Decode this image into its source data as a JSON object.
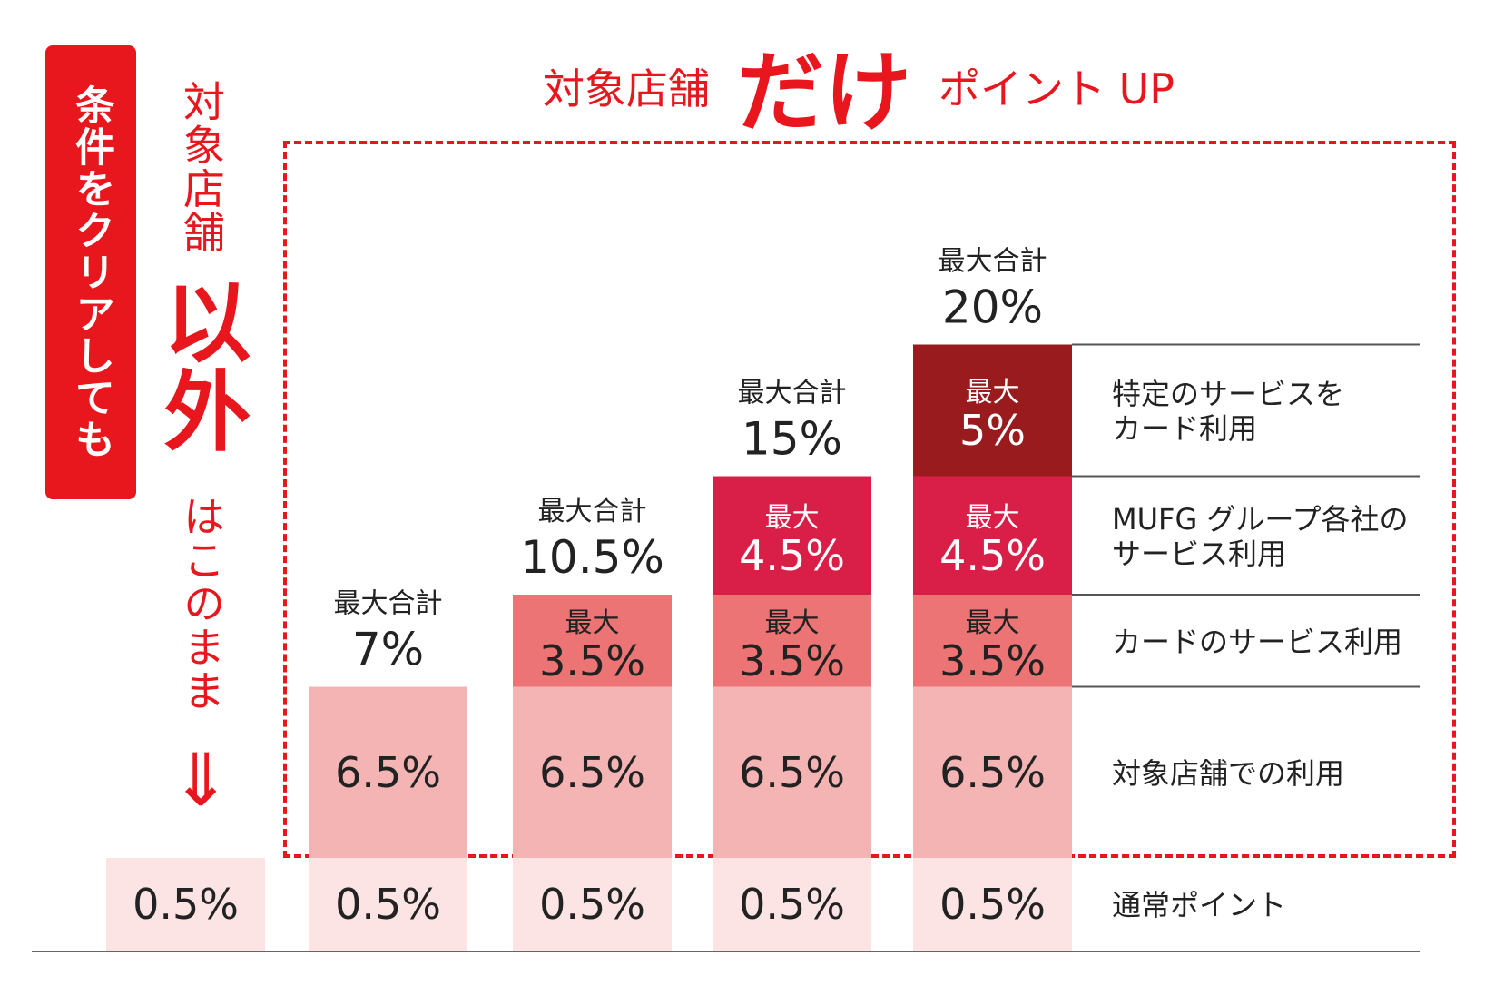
{
  "badge": {
    "text": "条件をクリアしても"
  },
  "side": {
    "line1": "対象店舗",
    "line2": "以外",
    "line3": "はこのまま",
    "arrow": "⇓"
  },
  "headline": {
    "prefix": "対象店舗",
    "emph": "だけ",
    "suffix": "ポイント UP"
  },
  "chart_data": {
    "type": "bar",
    "stacked": true,
    "categories": [
      "",
      "",
      "",
      "",
      ""
    ],
    "segment_prefix": "最大",
    "total_prefix": "最大合計",
    "series": [
      {
        "name": "通常ポイント",
        "values": [
          0.5,
          0.5,
          0.5,
          0.5,
          0.5
        ],
        "labels": [
          "0.5%",
          "0.5%",
          "0.5%",
          "0.5%",
          "0.5%"
        ],
        "color": "#fce4e4"
      },
      {
        "name": "対象店舗での利用",
        "values": [
          0,
          6.5,
          6.5,
          6.5,
          6.5
        ],
        "labels": [
          "",
          "6.5%",
          "6.5%",
          "6.5%",
          "6.5%"
        ],
        "color": "#f5b4b4"
      },
      {
        "name": "カードのサービス利用",
        "values": [
          0,
          0,
          3.5,
          3.5,
          3.5
        ],
        "labels": [
          "",
          "",
          "3.5%",
          "3.5%",
          "3.5%"
        ],
        "color": "#ec7474"
      },
      {
        "name": "MUFG グループ各社のサービス利用",
        "values": [
          0,
          0,
          0,
          4.5,
          4.5
        ],
        "labels": [
          "",
          "",
          "",
          "4.5%",
          "4.5%"
        ],
        "color": "#d91f48"
      },
      {
        "name": "特定のサービスをカード利用",
        "values": [
          0,
          0,
          0,
          0,
          5
        ],
        "labels": [
          "",
          "",
          "",
          "",
          "5%"
        ],
        "color": "#991b1e"
      }
    ],
    "totals": [
      "",
      "7%",
      "10.5%",
      "15%",
      "20%"
    ]
  },
  "legend": {
    "items": [
      {
        "lines": [
          "特定のサービスを",
          "カード利用"
        ]
      },
      {
        "lines": [
          "MUFG グループ各社の",
          "サービス利用"
        ]
      },
      {
        "lines": [
          "カードのサービス利用"
        ]
      },
      {
        "lines": [
          "対象店舗での利用"
        ]
      },
      {
        "lines": [
          "通常ポイント"
        ]
      }
    ]
  },
  "colors": {
    "accent": "#e8161d"
  }
}
